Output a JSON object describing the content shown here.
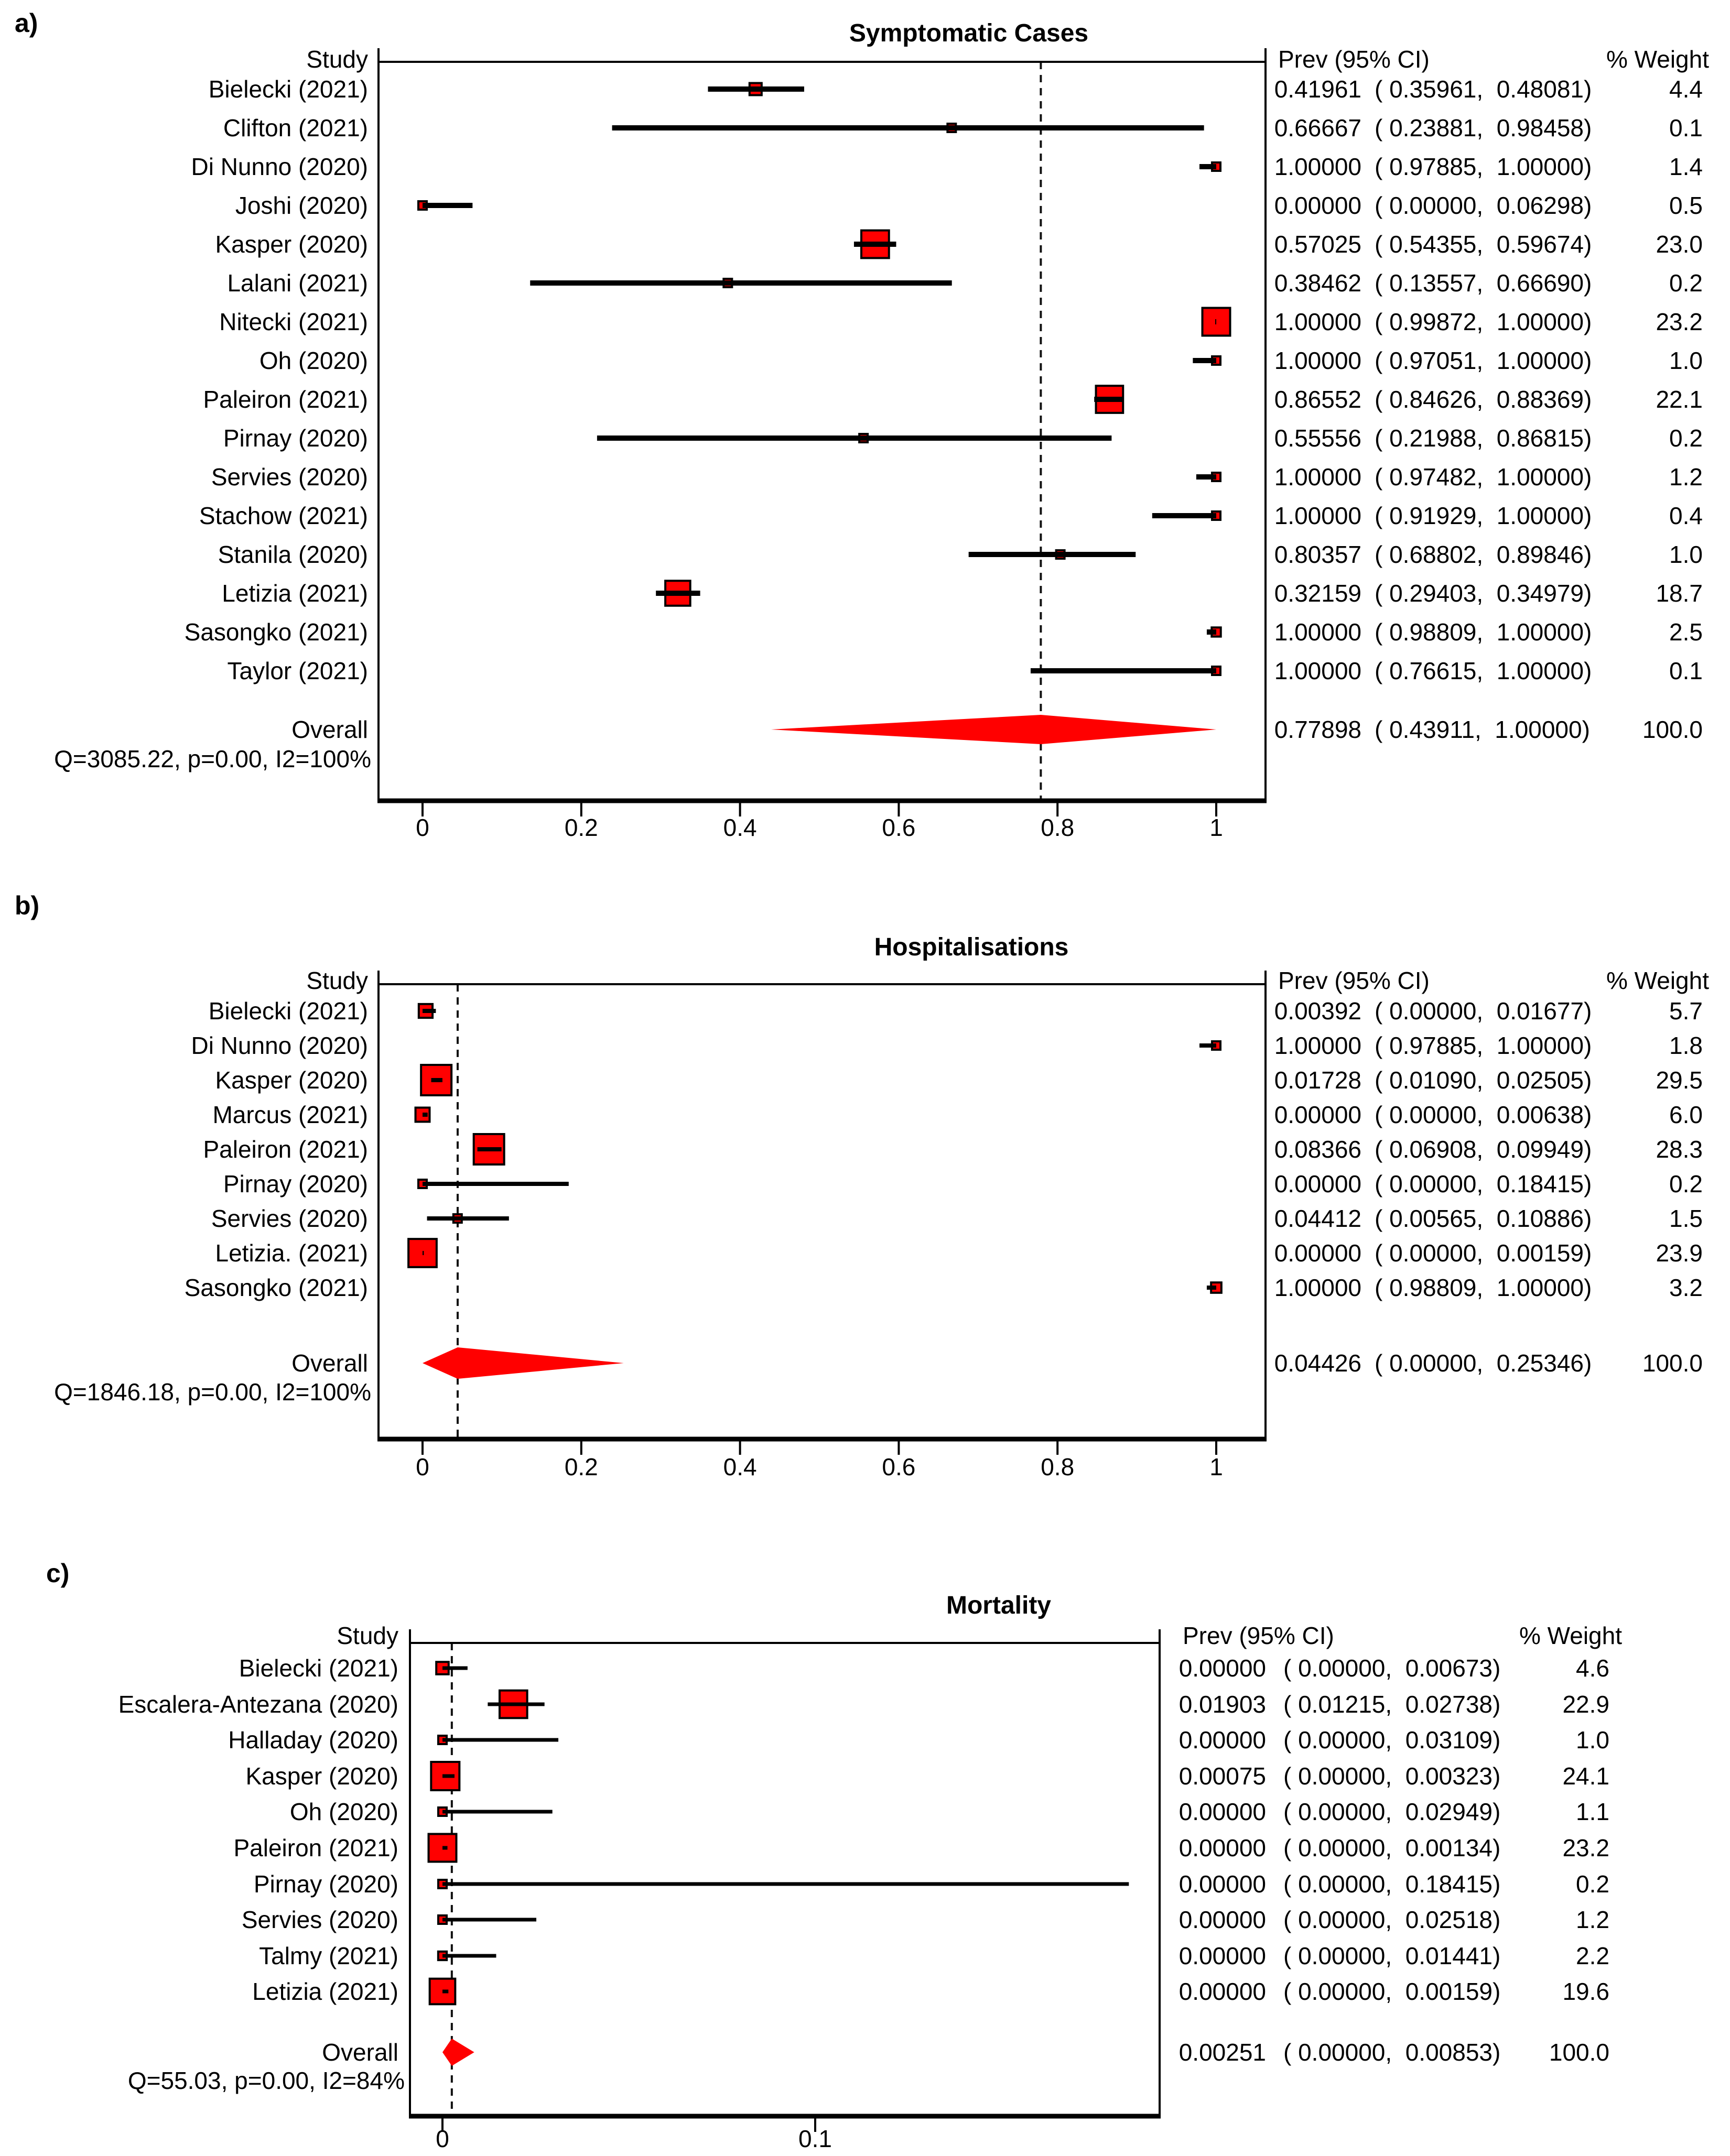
{
  "chart_data": [
    {
      "type": "forest",
      "panel_label": "a)",
      "title": "Symptomatic Cases",
      "headers": {
        "study": "Study",
        "prev": "Prev (95% CI)",
        "weight": "% Weight"
      },
      "studies": [
        {
          "label": "Bielecki (2021)",
          "prev": 0.41961,
          "lo": 0.35961,
          "hi": 0.48081,
          "weight": 4.4
        },
        {
          "label": "Clifton (2021)",
          "prev": 0.66667,
          "lo": 0.23881,
          "hi": 0.98458,
          "weight": 0.1
        },
        {
          "label": "Di Nunno (2020)",
          "prev": 1.0,
          "lo": 0.97885,
          "hi": 1.0,
          "weight": 1.4
        },
        {
          "label": "Joshi (2020)",
          "prev": 0.0,
          "lo": 0.0,
          "hi": 0.06298,
          "weight": 0.5
        },
        {
          "label": "Kasper (2020)",
          "prev": 0.57025,
          "lo": 0.54355,
          "hi": 0.59674,
          "weight": 23.0
        },
        {
          "label": "Lalani (2021)",
          "prev": 0.38462,
          "lo": 0.13557,
          "hi": 0.6669,
          "weight": 0.2
        },
        {
          "label": "Nitecki (2021)",
          "prev": 1.0,
          "lo": 0.99872,
          "hi": 1.0,
          "weight": 23.2
        },
        {
          "label": "Oh (2020)",
          "prev": 1.0,
          "lo": 0.97051,
          "hi": 1.0,
          "weight": 1.0
        },
        {
          "label": "Paleiron (2021)",
          "prev": 0.86552,
          "lo": 0.84626,
          "hi": 0.88369,
          "weight": 22.1
        },
        {
          "label": "Pirnay (2020)",
          "prev": 0.55556,
          "lo": 0.21988,
          "hi": 0.86815,
          "weight": 0.2
        },
        {
          "label": "Servies (2020)",
          "prev": 1.0,
          "lo": 0.97482,
          "hi": 1.0,
          "weight": 1.2
        },
        {
          "label": "Stachow (2021)",
          "prev": 1.0,
          "lo": 0.91929,
          "hi": 1.0,
          "weight": 0.4
        },
        {
          "label": "Stanila (2020)",
          "prev": 0.80357,
          "lo": 0.68802,
          "hi": 0.89846,
          "weight": 1.0
        },
        {
          "label": "Letizia (2021)",
          "prev": 0.32159,
          "lo": 0.29403,
          "hi": 0.34979,
          "weight": 18.7
        },
        {
          "label": "Sasongko (2021)",
          "prev": 1.0,
          "lo": 0.98809,
          "hi": 1.0,
          "weight": 2.5
        },
        {
          "label": "Taylor (2021)",
          "prev": 1.0,
          "lo": 0.76615,
          "hi": 1.0,
          "weight": 0.1
        }
      ],
      "overall": {
        "label": "Overall",
        "prev": 0.77898,
        "lo": 0.43911,
        "hi": 1.0,
        "weight": 100.0
      },
      "heterogeneity": "Q=3085.22, p=0.00, I2=100%",
      "x_ticks": [
        0,
        0.2,
        0.4,
        0.6,
        0.8,
        1
      ],
      "xlim": [
        -0.055,
        1.062
      ],
      "grid": false,
      "accent_color": "#ff0000"
    },
    {
      "type": "forest",
      "panel_label": "b)",
      "title": "Hospitalisations",
      "headers": {
        "study": "Study",
        "prev": "Prev (95% CI)",
        "weight": "% Weight"
      },
      "studies": [
        {
          "label": "Bielecki (2021)",
          "prev": 0.00392,
          "lo": 0.0,
          "hi": 0.01677,
          "weight": 5.7
        },
        {
          "label": "Di Nunno (2020)",
          "prev": 1.0,
          "lo": 0.97885,
          "hi": 1.0,
          "weight": 1.8
        },
        {
          "label": "Kasper (2020)",
          "prev": 0.01728,
          "lo": 0.0109,
          "hi": 0.02505,
          "weight": 29.5
        },
        {
          "label": "Marcus (2021)",
          "prev": 0.0,
          "lo": 0.0,
          "hi": 0.00638,
          "weight": 6.0
        },
        {
          "label": "Paleiron (2021)",
          "prev": 0.08366,
          "lo": 0.06908,
          "hi": 0.09949,
          "weight": 28.3
        },
        {
          "label": "Pirnay (2020)",
          "prev": 0.0,
          "lo": 0.0,
          "hi": 0.18415,
          "weight": 0.2
        },
        {
          "label": "Servies (2020)",
          "prev": 0.04412,
          "lo": 0.00565,
          "hi": 0.10886,
          "weight": 1.5
        },
        {
          "label": "Letizia. (2021)",
          "prev": 0.0,
          "lo": 0.0,
          "hi": 0.00159,
          "weight": 23.9
        },
        {
          "label": "Sasongko (2021)",
          "prev": 1.0,
          "lo": 0.98809,
          "hi": 1.0,
          "weight": 3.2
        }
      ],
      "overall": {
        "label": "Overall",
        "prev": 0.04426,
        "lo": 0.0,
        "hi": 0.25346,
        "weight": 100.0
      },
      "heterogeneity": "Q=1846.18, p=0.00, I2=100%",
      "x_ticks": [
        0,
        0.2,
        0.4,
        0.6,
        0.8,
        1
      ],
      "xlim": [
        -0.055,
        1.062
      ],
      "grid": false,
      "accent_color": "#ff0000"
    },
    {
      "type": "forest",
      "panel_label": "c)",
      "title": "Mortality",
      "headers": {
        "study": "Study",
        "prev": "Prev (95% CI)",
        "weight": "% Weight"
      },
      "studies": [
        {
          "label": "Bielecki (2021)",
          "prev": 0.0,
          "lo": 0.0,
          "hi": 0.00673,
          "weight": 4.6
        },
        {
          "label": "Escalera-Antezana (2020)",
          "prev": 0.01903,
          "lo": 0.01215,
          "hi": 0.02738,
          "weight": 22.9
        },
        {
          "label": "Halladay (2020)",
          "prev": 0.0,
          "lo": 0.0,
          "hi": 0.03109,
          "weight": 1.0
        },
        {
          "label": "Kasper (2020)",
          "prev": 0.00075,
          "lo": 0.0,
          "hi": 0.00323,
          "weight": 24.1
        },
        {
          "label": "Oh (2020)",
          "prev": 0.0,
          "lo": 0.0,
          "hi": 0.02949,
          "weight": 1.1
        },
        {
          "label": "Paleiron (2021)",
          "prev": 0.0,
          "lo": 0.0,
          "hi": 0.00134,
          "weight": 23.2
        },
        {
          "label": "Pirnay (2020)",
          "prev": 0.0,
          "lo": 0.0,
          "hi": 0.18415,
          "weight": 0.2
        },
        {
          "label": "Servies (2020)",
          "prev": 0.0,
          "lo": 0.0,
          "hi": 0.02518,
          "weight": 1.2
        },
        {
          "label": "Talmy (2021)",
          "prev": 0.0,
          "lo": 0.0,
          "hi": 0.01441,
          "weight": 2.2
        },
        {
          "label": "Letizia (2021)",
          "prev": 0.0,
          "lo": 0.0,
          "hi": 0.00159,
          "weight": 19.6
        }
      ],
      "overall": {
        "label": "Overall",
        "prev": 0.00251,
        "lo": 0.0,
        "hi": 0.00853,
        "weight": 100.0
      },
      "heterogeneity": "Q=55.03, p=0.00, I2=84%",
      "x_ticks": [
        0,
        0.1
      ],
      "xlim": [
        -0.009,
        0.192
      ],
      "grid": false,
      "accent_color": "#ff0000"
    }
  ]
}
